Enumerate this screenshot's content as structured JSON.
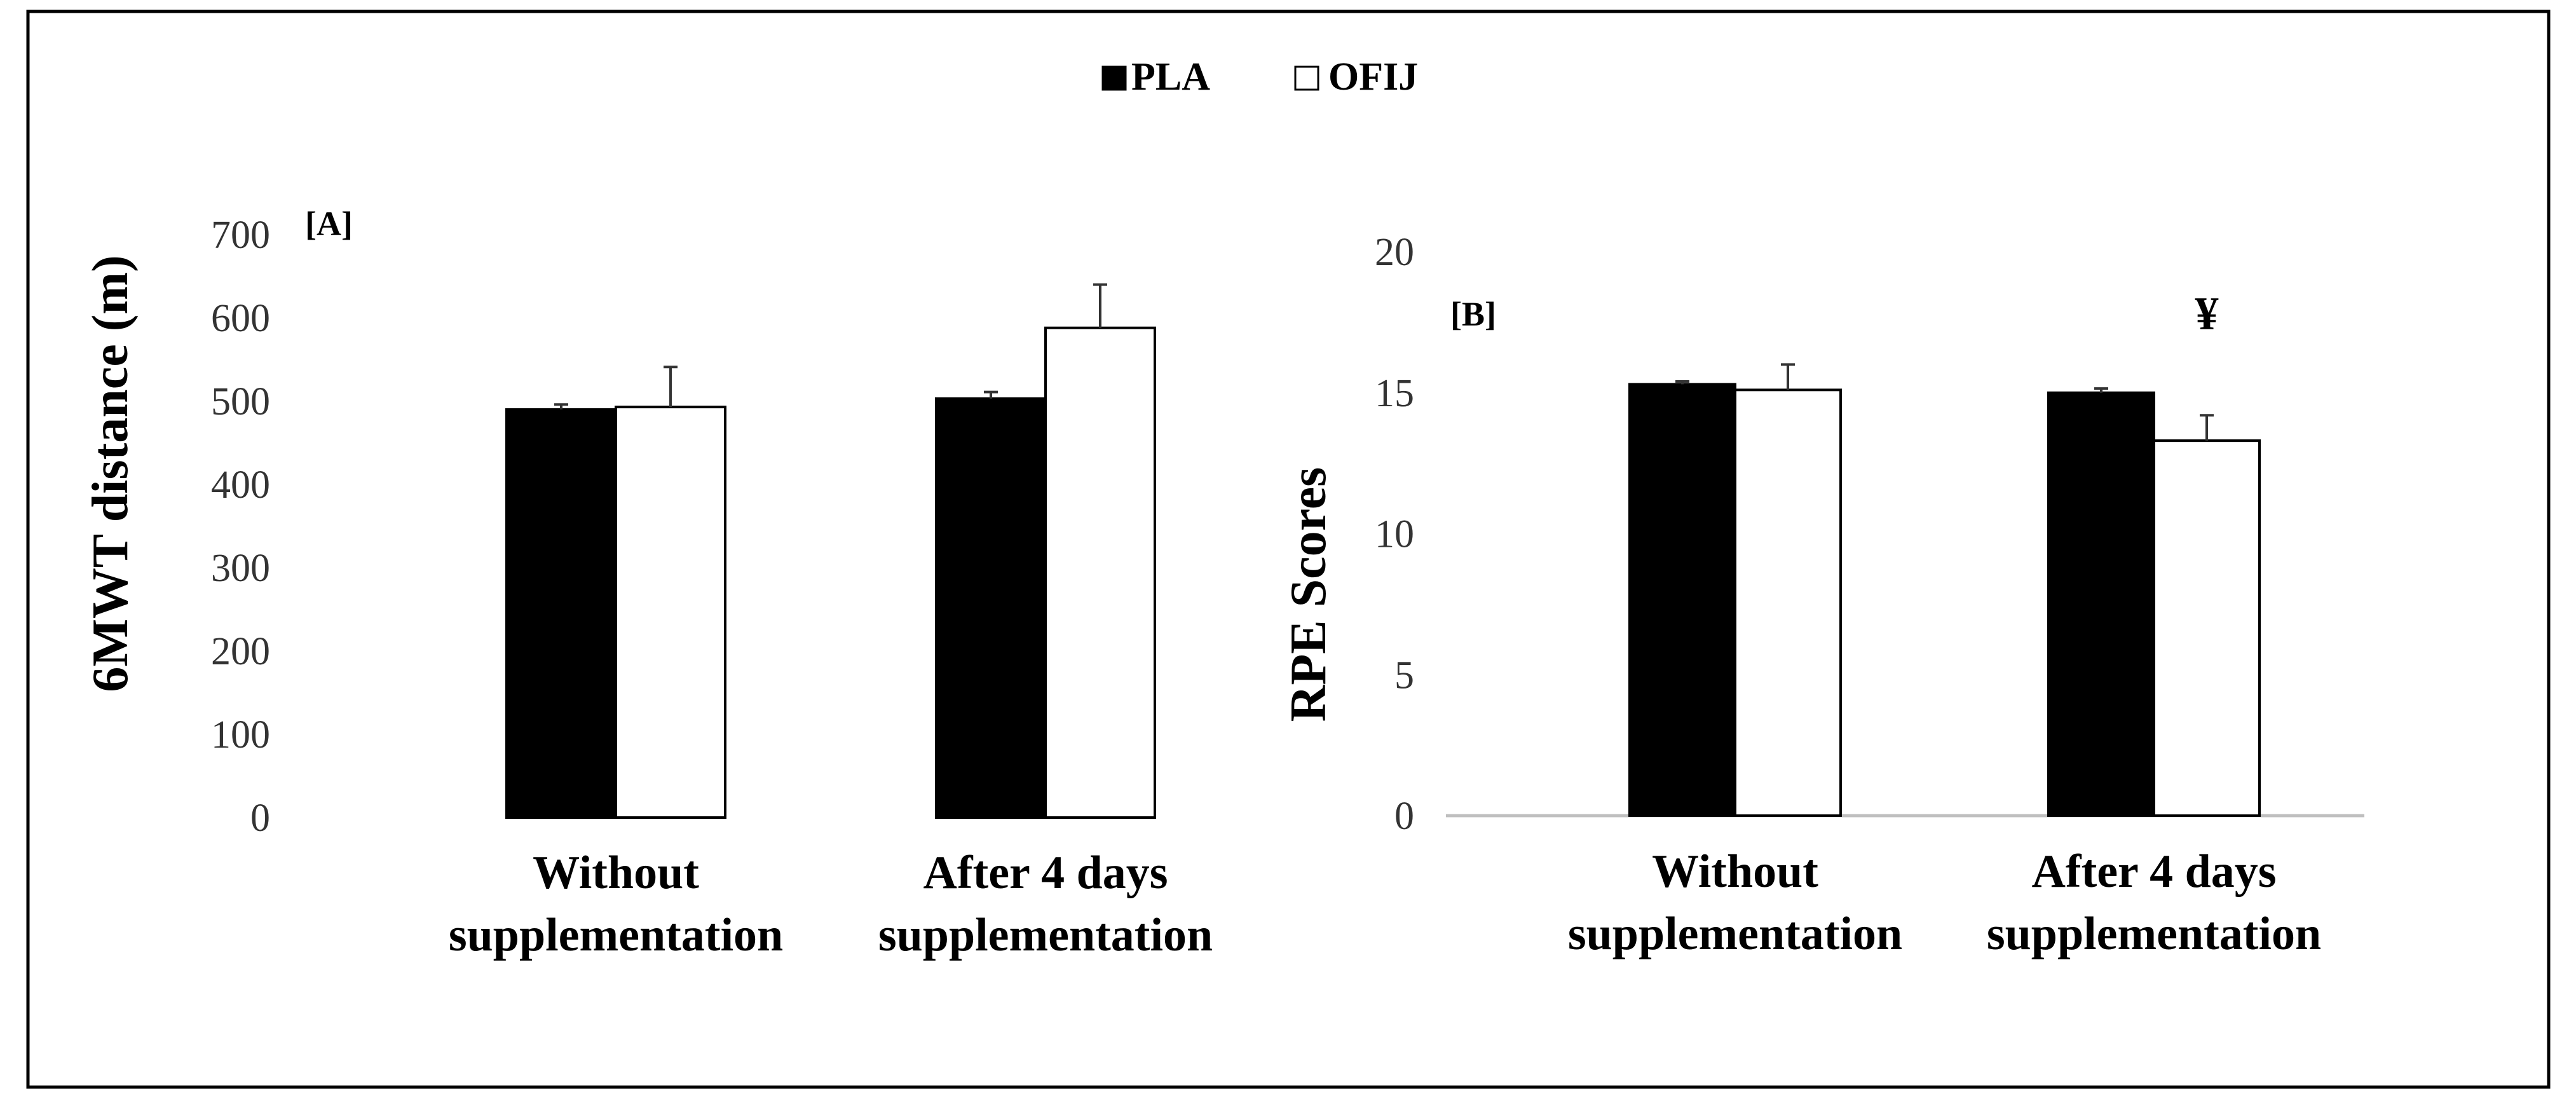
{
  "legend": {
    "pla": "PLA",
    "ofij": "OFIJ"
  },
  "colors": {
    "pla": "#000000",
    "ofij": "#ffffff",
    "stroke": "#000000",
    "axis": "#bfbfbf",
    "errbar": "#333333"
  },
  "chart_data": [
    {
      "type": "bar",
      "panel_label": "[A]",
      "ylabel": "6MWT distance (m)",
      "ylim": [
        0,
        700
      ],
      "yticks": [
        0,
        100,
        200,
        300,
        400,
        500,
        600,
        700
      ],
      "categories": [
        [
          "Without",
          "supplementation"
        ],
        [
          "After 4 days",
          "supplementation"
        ]
      ],
      "series": [
        {
          "name": "PLA",
          "values": [
            490,
            503
          ],
          "errors": [
            6,
            8
          ]
        },
        {
          "name": "OFIJ",
          "values": [
            493,
            588
          ],
          "errors": [
            48,
            52
          ]
        }
      ],
      "annotations": [],
      "grid": false
    },
    {
      "type": "bar",
      "panel_label": "[B]",
      "ylabel": "RPE Scores",
      "ylim": [
        0,
        20
      ],
      "yticks": [
        0,
        5,
        10,
        15,
        20
      ],
      "categories": [
        [
          "Without",
          "supplementation"
        ],
        [
          "After 4 days",
          "supplementation"
        ]
      ],
      "series": [
        {
          "name": "PLA",
          "values": [
            15.3,
            15.0
          ],
          "errors": [
            0.1,
            0.15
          ]
        },
        {
          "name": "OFIJ",
          "values": [
            15.1,
            13.3
          ],
          "errors": [
            0.9,
            0.9
          ]
        }
      ],
      "annotations": [
        {
          "text": "¥",
          "category": 1,
          "series": "OFIJ"
        }
      ],
      "grid": false
    }
  ]
}
